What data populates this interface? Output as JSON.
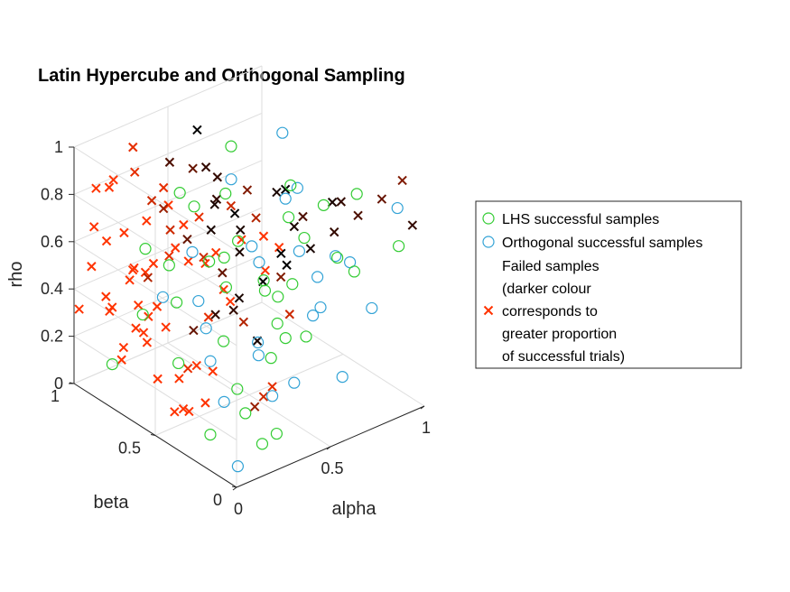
{
  "chart_data": {
    "type": "scatter",
    "dimensions": 3,
    "title": "Latin Hypercube and Orthogonal Sampling",
    "xlabel": "alpha",
    "ylabel": "beta",
    "zlabel": "rho",
    "xlim": [
      0,
      1
    ],
    "ylim": [
      0,
      1
    ],
    "zlim": [
      0,
      1
    ],
    "x_ticks": [
      "0",
      "0.5",
      "1"
    ],
    "y_ticks": [
      "0",
      "0.5",
      "1"
    ],
    "z_ticks": [
      "0",
      "0.2",
      "0.4",
      "0.6",
      "0.8",
      "1"
    ],
    "grid": true,
    "legend_position": "right",
    "colors": {
      "lhs": "#33cc33",
      "orthogonal": "#33a3d6",
      "failed_red": "#ff3300",
      "failed_dark": "#000000"
    },
    "series": [
      {
        "name": "LHS successful samples",
        "marker": "circle",
        "points": [
          [
            0.12,
            0.3,
            0.05
          ],
          [
            0.18,
            0.05,
            0.1
          ],
          [
            0.22,
            0.2,
            0.15
          ],
          [
            0.3,
            0.1,
            0.08
          ],
          [
            0.35,
            0.4,
            0.12
          ],
          [
            0.4,
            0.25,
            0.3
          ],
          [
            0.45,
            0.6,
            0.2
          ],
          [
            0.5,
            0.15,
            0.4
          ],
          [
            0.55,
            0.7,
            0.35
          ],
          [
            0.6,
            0.35,
            0.5
          ],
          [
            0.65,
            0.5,
            0.25
          ],
          [
            0.7,
            0.8,
            0.45
          ],
          [
            0.75,
            0.45,
            0.6
          ],
          [
            0.8,
            0.2,
            0.55
          ],
          [
            0.85,
            0.65,
            0.7
          ],
          [
            0.9,
            0.3,
            0.8
          ],
          [
            0.95,
            0.1,
            0.65
          ],
          [
            0.25,
            0.85,
            0.55
          ],
          [
            0.33,
            0.55,
            0.6
          ],
          [
            0.42,
            0.9,
            0.4
          ],
          [
            0.15,
            0.75,
            0.35
          ],
          [
            0.58,
            0.05,
            0.75
          ],
          [
            0.68,
            0.25,
            0.85
          ],
          [
            0.48,
            0.38,
            0.5
          ],
          [
            0.38,
            0.7,
            0.75
          ],
          [
            0.28,
            0.4,
            0.7
          ],
          [
            0.78,
            0.6,
            0.1
          ],
          [
            0.88,
            0.85,
            0.2
          ],
          [
            0.52,
            0.95,
            0.65
          ],
          [
            0.2,
            0.6,
            0.45
          ],
          [
            0.08,
            0.45,
            0.3
          ],
          [
            0.62,
            0.75,
            0.9
          ],
          [
            0.72,
            0.9,
            0.6
          ],
          [
            0.45,
            0.2,
            0.9
          ],
          [
            0.35,
            0.15,
            0.62
          ],
          [
            0.1,
            0.88,
            0.1
          ]
        ]
      },
      {
        "name": "Orthogonal successful samples",
        "marker": "circle",
        "points": [
          [
            0.05,
            0.05,
            0.05
          ],
          [
            0.15,
            0.25,
            0.2
          ],
          [
            0.25,
            0.45,
            0.25
          ],
          [
            0.35,
            0.05,
            0.3
          ],
          [
            0.45,
            0.3,
            0.1
          ],
          [
            0.55,
            0.5,
            0.15
          ],
          [
            0.65,
            0.1,
            0.2
          ],
          [
            0.75,
            0.35,
            0.35
          ],
          [
            0.85,
            0.15,
            0.4
          ],
          [
            0.95,
            0.4,
            0.45
          ],
          [
            0.6,
            0.6,
            0.55
          ],
          [
            0.7,
            0.2,
            0.65
          ],
          [
            0.8,
            0.55,
            0.75
          ],
          [
            0.9,
            0.05,
            0.85
          ],
          [
            0.4,
            0.65,
            0.25
          ],
          [
            0.3,
            0.8,
            0.35
          ],
          [
            0.5,
            0.85,
            0.45
          ],
          [
            0.2,
            0.1,
            0.5
          ],
          [
            0.1,
            0.35,
            0.6
          ],
          [
            0.55,
            0.25,
            0.7
          ],
          [
            0.65,
            0.45,
            0.8
          ],
          [
            0.85,
            0.7,
            0.9
          ],
          [
            0.75,
            0.9,
            0.65
          ],
          [
            0.95,
            0.6,
            0.3
          ],
          [
            0.45,
            0.05,
            0.55
          ],
          [
            0.25,
            0.15,
            0.8
          ]
        ]
      },
      {
        "name": "Failed samples (darker colour corresponds to greater proportion of successful trials)",
        "marker": "x",
        "points": [
          [
            0.05,
            0.95,
            0.5
          ],
          [
            0.02,
            0.9,
            0.7
          ],
          [
            0.08,
            0.85,
            0.9
          ],
          [
            0.1,
            0.98,
            0.8
          ],
          [
            0.12,
            0.92,
            0.3
          ],
          [
            0.03,
            0.8,
            0.4
          ],
          [
            0.06,
            0.7,
            0.6
          ],
          [
            0.04,
            0.6,
            0.85
          ],
          [
            0.07,
            0.5,
            0.95
          ],
          [
            0.09,
            0.4,
            0.75
          ],
          [
            0.11,
            0.3,
            0.55
          ],
          [
            0.14,
            0.2,
            0.65
          ],
          [
            0.16,
            0.88,
            0.15
          ],
          [
            0.18,
            0.78,
            0.25
          ],
          [
            0.2,
            0.68,
            0.9
          ],
          [
            0.22,
            0.58,
            0.78
          ],
          [
            0.24,
            0.48,
            0.68
          ],
          [
            0.26,
            0.38,
            0.58
          ],
          [
            0.28,
            0.28,
            0.48
          ],
          [
            0.3,
            0.18,
            0.88
          ],
          [
            0.13,
            0.12,
            0.95
          ],
          [
            0.17,
            0.02,
            0.85
          ],
          [
            0.21,
            0.95,
            0.05
          ],
          [
            0.25,
            0.85,
            0.45
          ],
          [
            0.29,
            0.75,
            0.55
          ],
          [
            0.33,
            0.65,
            0.95
          ],
          [
            0.37,
            0.55,
            0.85
          ],
          [
            0.41,
            0.45,
            0.75
          ],
          [
            0.36,
            0.35,
            0.98
          ],
          [
            0.32,
            0.25,
            0.92
          ],
          [
            0.27,
            0.05,
            0.9
          ],
          [
            0.23,
            0.3,
            0.98
          ],
          [
            0.19,
            0.45,
            0.88
          ],
          [
            0.15,
            0.55,
            0.72
          ],
          [
            0.12,
            0.65,
            0.62
          ],
          [
            0.08,
            0.75,
            0.52
          ],
          [
            0.04,
            0.85,
            0.42
          ],
          [
            0.01,
            0.98,
            0.32
          ],
          [
            0.02,
            0.15,
            0.92
          ],
          [
            0.05,
            0.25,
            0.82
          ],
          [
            0.44,
            0.1,
            0.95
          ],
          [
            0.48,
            0.2,
            0.85
          ],
          [
            0.52,
            0.3,
            0.95
          ],
          [
            0.56,
            0.4,
            0.88
          ],
          [
            0.6,
            0.05,
            0.98
          ],
          [
            0.64,
            0.15,
            0.92
          ],
          [
            0.39,
            0.9,
            0.65
          ],
          [
            0.43,
            0.8,
            0.55
          ],
          [
            0.47,
            0.7,
            0.62
          ],
          [
            0.51,
            0.6,
            0.72
          ],
          [
            0.35,
            0.95,
            0.35
          ],
          [
            0.31,
            0.88,
            0.72
          ],
          [
            0.28,
            0.95,
            0.82
          ],
          [
            0.18,
            0.9,
            0.62
          ],
          [
            0.14,
            0.8,
            0.52
          ],
          [
            0.1,
            0.72,
            0.42
          ],
          [
            0.06,
            0.62,
            0.32
          ],
          [
            0.03,
            0.52,
            0.22
          ],
          [
            0.08,
            0.42,
            0.12
          ],
          [
            0.12,
            0.52,
            0.05
          ],
          [
            0.16,
            0.62,
            0.35
          ],
          [
            0.2,
            0.72,
            0.38
          ],
          [
            0.24,
            0.82,
            0.28
          ],
          [
            0.55,
            0.9,
            0.08
          ],
          [
            0.58,
            0.8,
            0.18
          ],
          [
            0.62,
            0.7,
            0.28
          ],
          [
            0.66,
            0.6,
            0.38
          ],
          [
            0.7,
            0.5,
            0.48
          ],
          [
            0.74,
            0.4,
            0.58
          ],
          [
            0.78,
            0.3,
            0.68
          ],
          [
            0.82,
            0.2,
            0.78
          ],
          [
            0.86,
            0.1,
            0.88
          ],
          [
            0.9,
            0.02,
            0.98
          ],
          [
            0.98,
            0.05,
            0.75
          ],
          [
            0.4,
            0.35,
            0.05
          ],
          [
            0.36,
            0.25,
            0.15
          ],
          [
            0.32,
            0.15,
            0.25
          ],
          [
            0.46,
            0.55,
            0.35
          ],
          [
            0.5,
            0.45,
            0.25
          ],
          [
            0.54,
            0.35,
            0.65
          ],
          [
            0.26,
            0.6,
            0.15
          ],
          [
            0.22,
            0.5,
            0.22
          ],
          [
            0.18,
            0.4,
            0.12
          ],
          [
            0.3,
            0.7,
            0.05
          ],
          [
            0.05,
            0.35,
            0.15
          ],
          [
            0.09,
            0.25,
            0.35
          ],
          [
            0.13,
            0.95,
            0.58
          ],
          [
            0.17,
            0.98,
            0.78
          ],
          [
            0.21,
            0.88,
            0.98
          ],
          [
            0.27,
            0.72,
            0.68
          ],
          [
            0.34,
            0.48,
            0.58
          ],
          [
            0.38,
            0.42,
            0.68
          ],
          [
            0.42,
            0.62,
            0.78
          ],
          [
            0.46,
            0.72,
            0.88
          ],
          [
            0.5,
            0.82,
            0.98
          ],
          [
            0.44,
            0.92,
            0.82
          ],
          [
            0.4,
            0.58,
            0.92
          ],
          [
            0.34,
            0.12,
            0.72
          ],
          [
            0.3,
            0.02,
            0.62
          ],
          [
            0.26,
            0.92,
            0.18
          ]
        ],
        "darkness": [
          0.0,
          0.0,
          0.0,
          0.0,
          0.0,
          0.0,
          0.0,
          0.0,
          0.0,
          0.0,
          0.1,
          0.0,
          0.0,
          0.0,
          0.1,
          0.0,
          0.2,
          0.0,
          0.3,
          0.0,
          0.0,
          0.0,
          0.0,
          0.0,
          0.1,
          0.6,
          0.8,
          0.9,
          0.5,
          0.3,
          0.0,
          0.2,
          0.1,
          0.0,
          0.0,
          0.0,
          0.0,
          0.0,
          0.0,
          0.0,
          0.7,
          0.9,
          1.0,
          0.9,
          0.8,
          0.9,
          0.4,
          0.6,
          0.9,
          1.0,
          0.3,
          0.2,
          0.1,
          0.0,
          0.0,
          0.0,
          0.0,
          0.0,
          0.0,
          0.0,
          0.0,
          0.0,
          0.0,
          0.6,
          0.8,
          0.9,
          1.0,
          1.0,
          0.9,
          0.8,
          0.7,
          0.6,
          0.5,
          0.8,
          0.4,
          0.2,
          0.1,
          0.8,
          0.9,
          1.0,
          0.1,
          0.0,
          0.0,
          0.0,
          0.0,
          0.0,
          0.0,
          0.0,
          0.1,
          0.2,
          0.6,
          0.9,
          0.9,
          0.8,
          1.0,
          0.7,
          0.8,
          0.5,
          0.2,
          0.0
        ]
      }
    ],
    "legend": {
      "entries": [
        {
          "label_lines": [
            "LHS successful samples"
          ],
          "marker": "circle",
          "color": "#33cc33"
        },
        {
          "label_lines": [
            "Orthogonal successful samples"
          ],
          "marker": "circle",
          "color": "#33a3d6"
        },
        {
          "label_lines": [
            "Failed samples",
            "(darker colour",
            "corresponds to",
            "greater proportion",
            "of successful trials)"
          ],
          "marker": "x",
          "color": "#ff3300"
        }
      ]
    }
  }
}
